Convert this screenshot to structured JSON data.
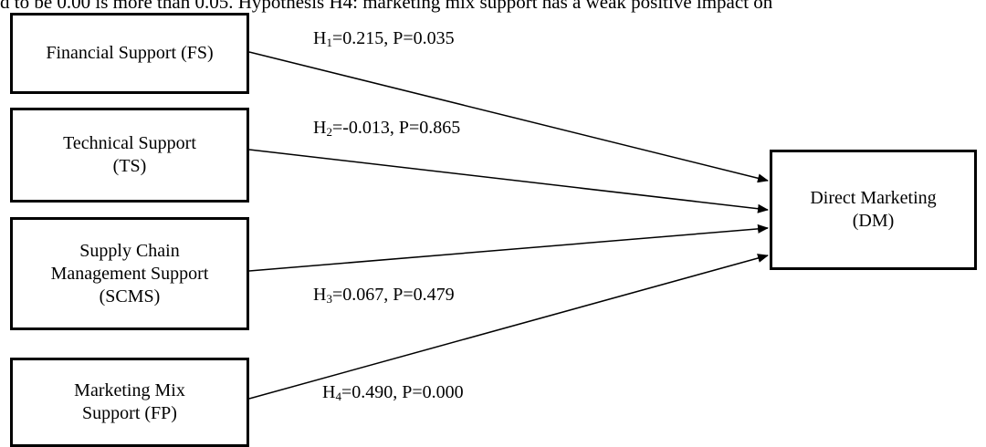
{
  "header_text": "d to be 0.00 is more than 0.05. Hypothesis H4: marketing mix support has a weak positive impact on",
  "boxes": {
    "fs": "Financial Support (FS)",
    "ts": "Technical Support\n(TS)",
    "scms": "Supply Chain\nManagement Support\n(SCMS)",
    "mm": "Marketing Mix\nSupport (FP)",
    "dm": "Direct Marketing\n(DM)"
  },
  "hypotheses": [
    {
      "h": "H",
      "sub": "1",
      "text": "=0.215, P=0.035"
    },
    {
      "h": "H",
      "sub": "2",
      "text": "=-0.013, P=0.865"
    },
    {
      "h": "H",
      "sub": "3",
      "text": "=0.067, P=0.479"
    },
    {
      "h": "H",
      "sub": "4",
      "text": "=0.490, P=0.000"
    }
  ]
}
